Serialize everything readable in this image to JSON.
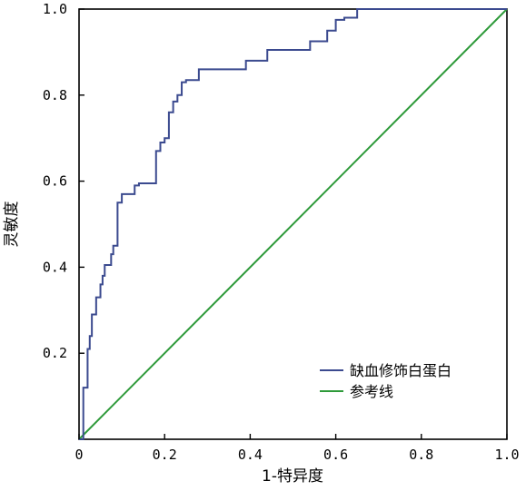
{
  "chart_data": {
    "type": "line",
    "xlabel": "1-特异度",
    "ylabel": "灵敏度",
    "xlim": [
      0,
      1
    ],
    "ylim": [
      0,
      1
    ],
    "x_ticks": [
      "0",
      "0.2",
      "0.4",
      "0.6",
      "0.8",
      "1.0"
    ],
    "y_ticks": [
      "0.2",
      "0.4",
      "0.6",
      "0.8",
      "1.0"
    ],
    "x_tick_values": [
      0,
      0.2,
      0.4,
      0.6,
      0.8,
      1.0
    ],
    "y_tick_values": [
      0.2,
      0.4,
      0.6,
      0.8,
      1.0
    ],
    "grid": false,
    "legend_position": "bottom-right",
    "series": [
      {
        "name": "缺血修饰白蛋白",
        "color": "#3b4a8f",
        "step": true,
        "x": [
          0,
          0.01,
          0.02,
          0.025,
          0.03,
          0.04,
          0.05,
          0.055,
          0.06,
          0.075,
          0.08,
          0.09,
          0.1,
          0.13,
          0.14,
          0.18,
          0.19,
          0.2,
          0.21,
          0.22,
          0.23,
          0.24,
          0.25,
          0.26,
          0.28,
          0.39,
          0.44,
          0.54,
          0.58,
          0.6,
          0.62,
          0.65,
          1.0
        ],
        "y": [
          0,
          0.12,
          0.21,
          0.24,
          0.29,
          0.33,
          0.36,
          0.38,
          0.405,
          0.43,
          0.45,
          0.55,
          0.57,
          0.59,
          0.595,
          0.67,
          0.69,
          0.7,
          0.76,
          0.785,
          0.8,
          0.83,
          0.835,
          0.835,
          0.86,
          0.88,
          0.905,
          0.925,
          0.95,
          0.975,
          0.98,
          1.0,
          1.0
        ]
      },
      {
        "name": "参考线",
        "color": "#2e9a3a",
        "step": false,
        "x": [
          0,
          1
        ],
        "y": [
          0,
          1
        ]
      }
    ]
  },
  "watermark": "୽ ୾ ୿"
}
